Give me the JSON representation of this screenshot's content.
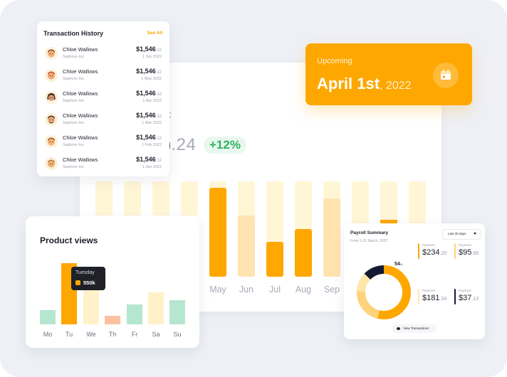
{
  "revenue": {
    "partial_label": "c",
    "amount_cut": ")",
    "amount_rest": ".24",
    "change_badge": "+12%",
    "months": [
      "May",
      "Jun",
      "Jul",
      "Aug",
      "Sep"
    ],
    "colors": {
      "track": "#fff6d6",
      "fill": "#fea700",
      "fill_light": "#ffe3b0",
      "axis_label": "#a6aab6"
    }
  },
  "transactions": {
    "title": "Transaction History",
    "see_all": "See All",
    "items": [
      {
        "name": "Chloe Wallows",
        "company": "Saphore Inc.",
        "amount": "$1,546",
        "cents": ".12",
        "date": "1 Jun 2022"
      },
      {
        "name": "Chloe Wallows",
        "company": "Saphore Inc.",
        "amount": "$1,546",
        "cents": ".12",
        "date": "1 May 2022"
      },
      {
        "name": "Chloe Wallows",
        "company": "Saphore Inc.",
        "amount": "$1,546",
        "cents": ".12",
        "date": "1 Apr 2022"
      },
      {
        "name": "Chloe Wallows",
        "company": "Saphore Inc.",
        "amount": "$1,546",
        "cents": ".12",
        "date": "1 Mar 2022"
      },
      {
        "name": "Chloe Wallows",
        "company": "Saphore Inc.",
        "amount": "$1,546",
        "cents": ".12",
        "date": "1 Feb 2022"
      },
      {
        "name": "Chloe Wallows",
        "company": "Saphore Inc.",
        "amount": "$1,546",
        "cents": ".12",
        "date": "1 Jan 2022"
      }
    ],
    "avatar_icon": "memoji-avatar-icon"
  },
  "upcoming": {
    "label": "Upcoming",
    "date": "April 1st",
    "year": ", 2022",
    "icon": "calendar-icon",
    "color": "#fea700"
  },
  "product_views": {
    "title": "Product views",
    "tooltip_day": "Tuesday",
    "tooltip_value": "550k",
    "days": [
      "Mo",
      "Tu",
      "We",
      "Th",
      "Fr",
      "Sa",
      "Su"
    ]
  },
  "payroll": {
    "title": "Payroll Summary",
    "subtitle": "From 1-31 March, 2022",
    "range": "Last 30 days",
    "percent": "54",
    "percent_unit": "%",
    "items": [
      {
        "label": "Payment",
        "amount": "$234",
        "cents": ".20",
        "color": "#fea700"
      },
      {
        "label": "Payment",
        "amount": "$95",
        "cents": ".86",
        "color": "#fed37a"
      },
      {
        "label": "Payment",
        "amount": "$181",
        "cents": ".34",
        "color": "#fee6a8"
      },
      {
        "label": "Payment",
        "amount": "$37",
        "cents": ".13",
        "color": "#141a33"
      }
    ],
    "button": "View Transactions"
  }
}
